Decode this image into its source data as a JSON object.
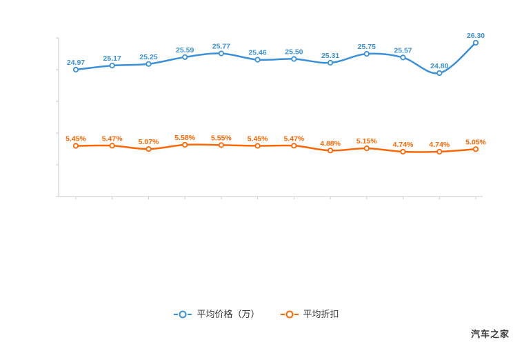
{
  "watermark": "汽车之家",
  "chart_data": {
    "type": "line",
    "title": "",
    "xlabel": "",
    "ylabel": "",
    "x_labels": [],
    "grid": false,
    "legend_position": "bottom",
    "series": [
      {
        "name": "平均价格（万）",
        "color": "#3a90d8",
        "values": [
          24.97,
          25.17,
          25.25,
          25.59,
          25.77,
          25.46,
          25.5,
          25.31,
          25.75,
          25.57,
          24.8,
          26.3
        ],
        "labels": [
          "24.97",
          "25.17",
          "25.25",
          "25.59",
          "25.77",
          "25.46",
          "25.50",
          "25.31",
          "25.75",
          "25.57",
          "24.80",
          "26.30"
        ]
      },
      {
        "name": "平均折扣",
        "color": "#ff6600",
        "values": [
          5.45,
          5.47,
          5.07,
          5.58,
          5.55,
          5.45,
          5.47,
          4.88,
          5.15,
          4.74,
          4.74,
          5.05
        ],
        "labels": [
          "5.45%",
          "5.47%",
          "5.07%",
          "5.58%",
          "5.55%",
          "5.45%",
          "5.47%",
          "4.88%",
          "5.15%",
          "4.74%",
          "4.74%",
          "5.05%"
        ]
      }
    ]
  }
}
